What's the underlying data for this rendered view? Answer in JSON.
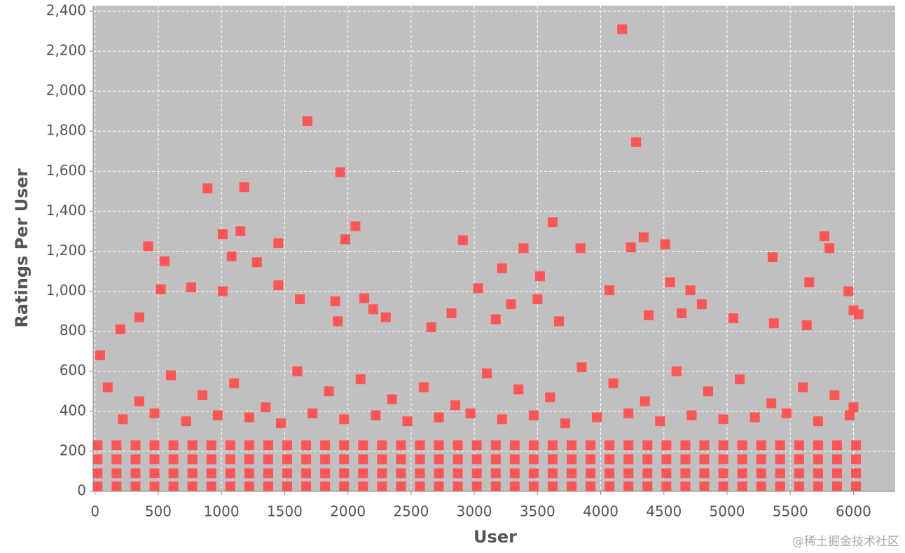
{
  "chart_data": {
    "type": "scatter",
    "x_label": "User",
    "y_label": "Ratings Per User",
    "watermark": "@稀土掘金技术社区",
    "color": "#ff5555",
    "grid": true,
    "xlim": [
      -15,
      6330
    ],
    "ylim": [
      0,
      2428
    ],
    "xticks": [
      0,
      500,
      1000,
      1500,
      2000,
      2500,
      3000,
      3500,
      4000,
      4500,
      5000,
      5500,
      6000
    ],
    "yticks": [
      0,
      200,
      400,
      600,
      800,
      {
        "value": 1000,
        "label": "1,000"
      },
      {
        "value": 1200,
        "label": "1,200"
      },
      {
        "value": 1400,
        "label": "1,400"
      },
      {
        "value": 1600,
        "label": "1,600"
      },
      {
        "value": 1800,
        "label": "1,800"
      },
      {
        "value": 2000,
        "label": "2,000"
      },
      {
        "value": 2200,
        "label": "2,200"
      },
      {
        "value": 2400,
        "label": "2,400"
      }
    ],
    "x": [
      4170,
      1680,
      4280,
      1940,
      890,
      1180,
      3620,
      2060,
      1150,
      1010,
      4340,
      5770,
      1980,
      2910,
      1450,
      4510,
      420,
      4240,
      3840,
      3390,
      5810,
      1080,
      5360,
      550,
      1280,
      3220,
      3520,
      4550,
      5650,
      1450,
      760,
      520,
      4070,
      3030,
      4710,
      5960,
      1010,
      2130,
      1620,
      3500,
      1900,
      4800,
      3290,
      2200,
      6000,
      6040,
      2820,
      4640,
      4380,
      3670,
      2300,
      350,
      5370,
      5050,
      3170,
      5630,
      200,
      2660,
      1920,
      40,
      100,
      350,
      600,
      850,
      1100,
      1350,
      1600,
      1850,
      2100,
      2350,
      2600,
      2850,
      3100,
      3350,
      3600,
      3850,
      4100,
      4350,
      4600,
      4850,
      5100,
      5350,
      5600,
      5850,
      6000,
      220,
      470,
      720,
      970,
      1220,
      1470,
      1720,
      1970,
      2220,
      2470,
      2720,
      2970,
      3220,
      3470,
      3720,
      3970,
      4220,
      4470,
      4720,
      4970,
      5220,
      5470,
      5720,
      5970,
      20,
      170,
      320,
      470,
      620,
      770,
      920,
      1070,
      1220,
      1370,
      1520,
      1670,
      1820,
      1970,
      2120,
      2270,
      2420,
      2570,
      2720,
      2870,
      3020,
      3170,
      3320,
      3470,
      3620,
      3770,
      3920,
      4070,
      4220,
      4370,
      4520,
      4670,
      4820,
      4970,
      5120,
      5270,
      5420,
      5570,
      5720,
      5870,
      6020,
      20,
      170,
      320,
      470,
      620,
      770,
      920,
      1070,
      1220,
      1370,
      1520,
      1670,
      1820,
      1970,
      2120,
      2270,
      2420,
      2570,
      2720,
      2870,
      3020,
      3170,
      3320,
      3470,
      3620,
      3770,
      3920,
      4070,
      4220,
      4370,
      4520,
      4670,
      4820,
      4970,
      5120,
      5270,
      5420,
      5570,
      5720,
      5870,
      6020,
      20,
      170,
      320,
      470,
      620,
      770,
      920,
      1070,
      1220,
      1370,
      1520,
      1670,
      1820,
      1970,
      2120,
      2270,
      2420,
      2570,
      2720,
      2870,
      3020,
      3170,
      3320,
      3470,
      3620,
      3770,
      3920,
      4070,
      4220,
      4370,
      4520,
      4670,
      4820,
      4970,
      5120,
      5270,
      5420,
      5570,
      5720,
      5870,
      6020,
      20,
      170,
      320,
      470,
      620,
      770,
      920,
      1070,
      1220,
      1370,
      1520,
      1670,
      1820,
      1970,
      2120,
      2270,
      2420,
      2570,
      2720,
      2870,
      3020,
      3170,
      3320,
      3470,
      3620,
      3770,
      3920,
      4070,
      4220,
      4370,
      4520,
      4670,
      4820,
      4970,
      5120,
      5270,
      5420,
      5570,
      5720,
      5870,
      6020
    ],
    "values": [
      2310,
      1850,
      1745,
      1595,
      1515,
      1520,
      1345,
      1325,
      1300,
      1285,
      1270,
      1275,
      1260,
      1255,
      1240,
      1235,
      1225,
      1220,
      1215,
      1215,
      1215,
      1175,
      1170,
      1150,
      1145,
      1115,
      1075,
      1045,
      1045,
      1030,
      1020,
      1010,
      1005,
      1015,
      1005,
      1000,
      1000,
      965,
      960,
      960,
      950,
      935,
      935,
      910,
      905,
      885,
      890,
      890,
      880,
      850,
      870,
      870,
      840,
      865,
      860,
      830,
      810,
      820,
      850,
      680,
      520,
      450,
      580,
      480,
      540,
      420,
      600,
      500,
      560,
      460,
      520,
      430,
      590,
      510,
      470,
      620,
      540,
      450,
      600,
      500,
      560,
      440,
      520,
      480,
      420,
      360,
      390,
      350,
      380,
      370,
      340,
      390,
      360,
      380,
      350,
      370,
      390,
      360,
      380,
      340,
      370,
      390,
      350,
      380,
      360,
      370,
      390,
      350,
      380,
      25,
      25,
      25,
      25,
      25,
      25,
      25,
      25,
      25,
      25,
      25,
      25,
      25,
      25,
      25,
      25,
      25,
      25,
      25,
      25,
      25,
      25,
      25,
      25,
      25,
      25,
      25,
      25,
      25,
      25,
      25,
      25,
      25,
      25,
      25,
      25,
      25,
      25,
      25,
      25,
      25,
      90,
      90,
      90,
      90,
      90,
      90,
      90,
      90,
      90,
      90,
      90,
      90,
      90,
      90,
      90,
      90,
      90,
      90,
      90,
      90,
      90,
      90,
      90,
      90,
      90,
      90,
      90,
      90,
      90,
      90,
      90,
      90,
      90,
      90,
      90,
      90,
      90,
      90,
      90,
      90,
      90,
      160,
      160,
      160,
      160,
      160,
      160,
      160,
      160,
      160,
      160,
      160,
      160,
      160,
      160,
      160,
      160,
      160,
      160,
      160,
      160,
      160,
      160,
      160,
      160,
      160,
      160,
      160,
      160,
      160,
      160,
      160,
      160,
      160,
      160,
      160,
      160,
      160,
      160,
      160,
      160,
      160,
      230,
      230,
      230,
      230,
      230,
      230,
      230,
      230,
      230,
      230,
      230,
      230,
      230,
      230,
      230,
      230,
      230,
      230,
      230,
      230,
      230,
      230,
      230,
      230,
      230,
      230,
      230,
      230,
      230,
      230,
      230,
      230,
      230,
      230,
      230,
      230,
      230,
      230,
      230,
      230,
      230
    ]
  }
}
